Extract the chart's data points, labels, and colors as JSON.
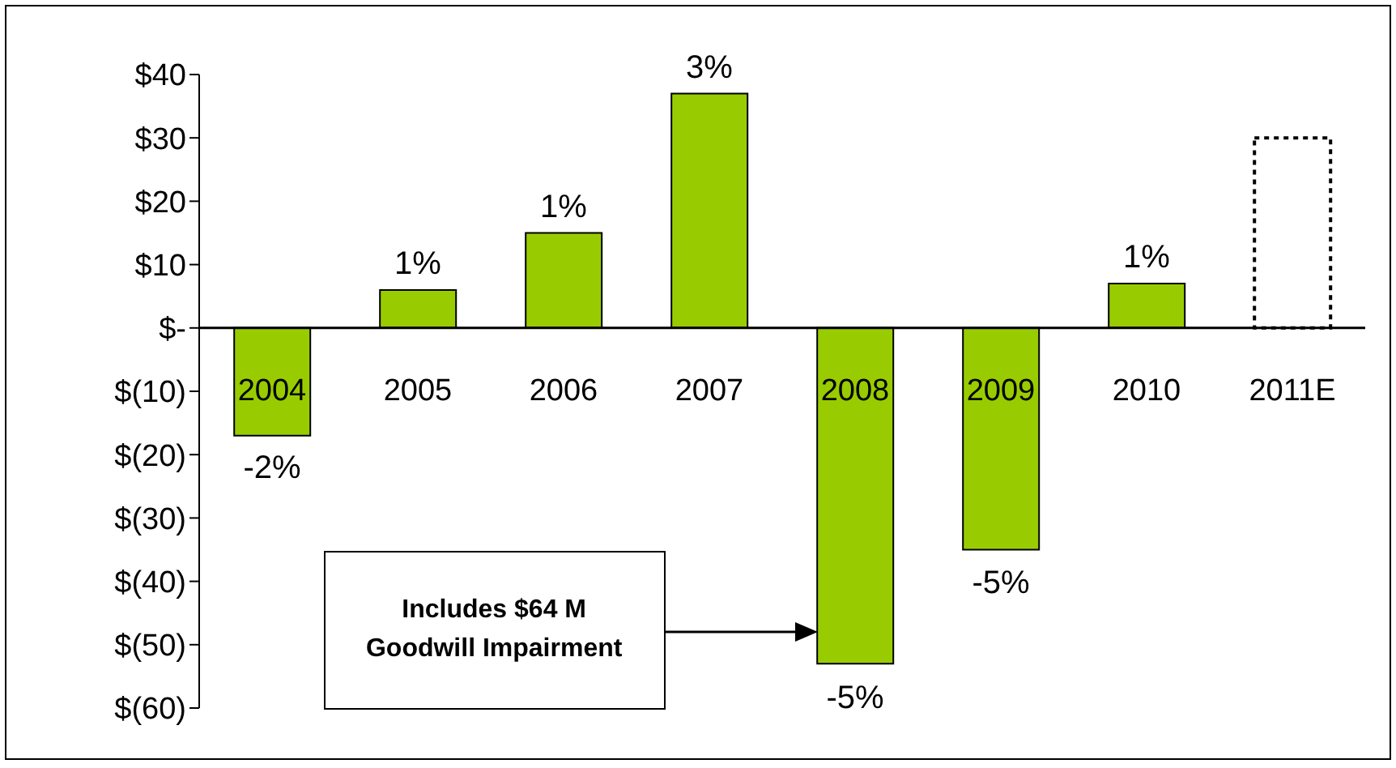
{
  "chart_data": {
    "type": "bar",
    "categories": [
      "2004",
      "2005",
      "2006",
      "2007",
      "2008",
      "2009",
      "2010",
      "2011E"
    ],
    "series": [
      {
        "color": "#99cc00",
        "values": [
          -17,
          6,
          15,
          37,
          -53,
          -35,
          7,
          null
        ]
      },
      {
        "color": "#ffffff",
        "line_style": "dotted",
        "values": [
          null,
          null,
          null,
          null,
          null,
          null,
          null,
          30
        ]
      }
    ],
    "stacked": true,
    "ylim": [
      -60,
      40
    ],
    "yticks": [
      {
        "value": 40,
        "label": "$40"
      },
      {
        "value": 30,
        "label": "$30"
      },
      {
        "value": 20,
        "label": "$20"
      },
      {
        "value": 10,
        "label": "$10"
      },
      {
        "value": 0,
        "label": "$-"
      },
      {
        "value": -10,
        "label": "$(10)"
      },
      {
        "value": -20,
        "label": "$(20)"
      },
      {
        "value": -30,
        "label": "$(30)"
      },
      {
        "value": -40,
        "label": "$(40)"
      },
      {
        "value": -50,
        "label": "$(50)"
      },
      {
        "value": -60,
        "label": "$(60)"
      }
    ],
    "grid": false,
    "legend": false,
    "annotations": [
      "Includes $64 M Goodwill Impairment",
      {
        "text": "-2%",
        "x": "2004",
        "y": -17
      },
      {
        "text": "1%",
        "x": "2005",
        "y": 6
      },
      {
        "text": "1%",
        "x": "2006",
        "y": 15
      },
      {
        "text": "3%",
        "x": "2007",
        "y": 37
      },
      {
        "text": "-5%",
        "x": "2008",
        "y": -53
      },
      {
        "text": "-5%",
        "x": "2009",
        "y": -35
      },
      {
        "text": "1%",
        "x": "2010",
        "y": 7
      }
    ]
  }
}
